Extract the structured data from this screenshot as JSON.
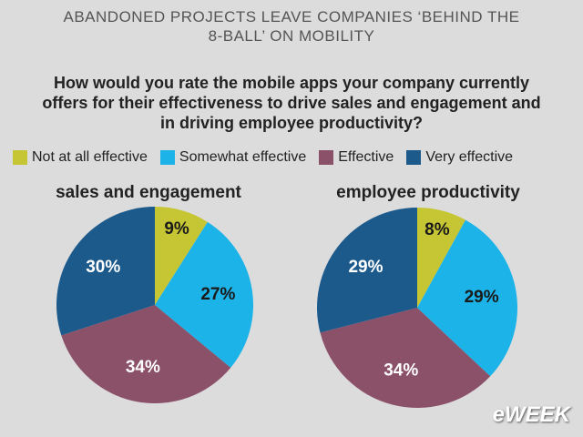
{
  "header": {
    "title": "ABANDONED PROJECTS LEAVE COMPANIES ‘BEHIND THE 8-BALL’ ON MOBILITY",
    "question": "How would you rate the mobile apps your company currently offers for their effectiveness to drive sales and engagement and in driving employee productivity?",
    "brand": "eWEEK"
  },
  "chart_data": [
    {
      "type": "pie",
      "title": "sales and engagement",
      "categories": [
        "Not at all effective",
        "Somewhat effective",
        "Effective",
        "Very effective"
      ],
      "values": [
        9,
        27,
        34,
        30
      ],
      "value_labels": [
        "9%",
        "27%",
        "34%",
        "30%"
      ],
      "colors": [
        "#c6c635",
        "#1cb3e9",
        "#8b5169",
        "#1d5a8c"
      ]
    },
    {
      "type": "pie",
      "title": "employee productivity",
      "categories": [
        "Not at all effective",
        "Somewhat effective",
        "Effective",
        "Very effective"
      ],
      "values": [
        8,
        29,
        34,
        29
      ],
      "value_labels": [
        "8%",
        "29%",
        "34%",
        "29%"
      ],
      "colors": [
        "#c6c635",
        "#1cb3e9",
        "#8b5169",
        "#1d5a8c"
      ]
    }
  ]
}
